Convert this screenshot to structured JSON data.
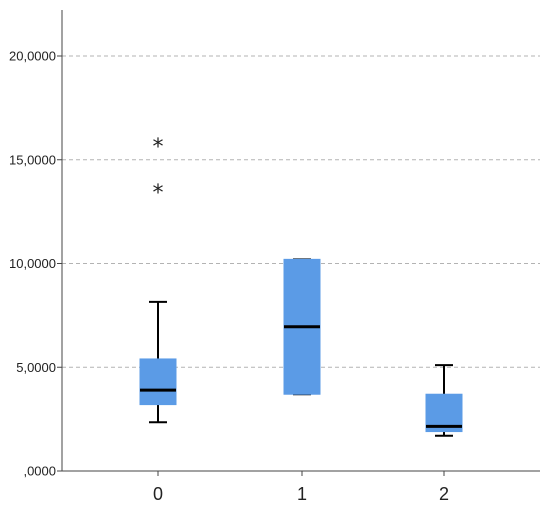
{
  "chart_data": {
    "type": "boxplot",
    "title": "",
    "xlabel": "",
    "ylabel": "",
    "ylim": [
      0,
      22500
    ],
    "y_ticks": [
      0,
      5000,
      10000,
      15000,
      20000
    ],
    "y_tick_labels": [
      ",0000",
      "5,0000",
      "10,0000",
      "15,0000",
      "20,0000"
    ],
    "grid": "horizontal dashed",
    "categories": [
      "0",
      "1",
      "2"
    ],
    "boxes": [
      {
        "category": "0",
        "whisker_low": 2350,
        "q1": 3200,
        "median": 3900,
        "q3": 5400,
        "whisker_high": 8150,
        "outliers": [
          13500,
          15700
        ]
      },
      {
        "category": "1",
        "whisker_low": 3700,
        "q1": 3700,
        "median": 6950,
        "q3": 10200,
        "whisker_high": 10200,
        "outliers": []
      },
      {
        "category": "2",
        "whisker_low": 1700,
        "q1": 1900,
        "median": 2150,
        "q3": 3700,
        "whisker_high": 5100,
        "outliers": []
      }
    ],
    "colors": {
      "box_fill": "#5b9be6",
      "median": "#000000",
      "whisker": "#000000",
      "grid": "#b3b3b3",
      "axis": "#444444"
    },
    "outlier_symbol": "*"
  }
}
